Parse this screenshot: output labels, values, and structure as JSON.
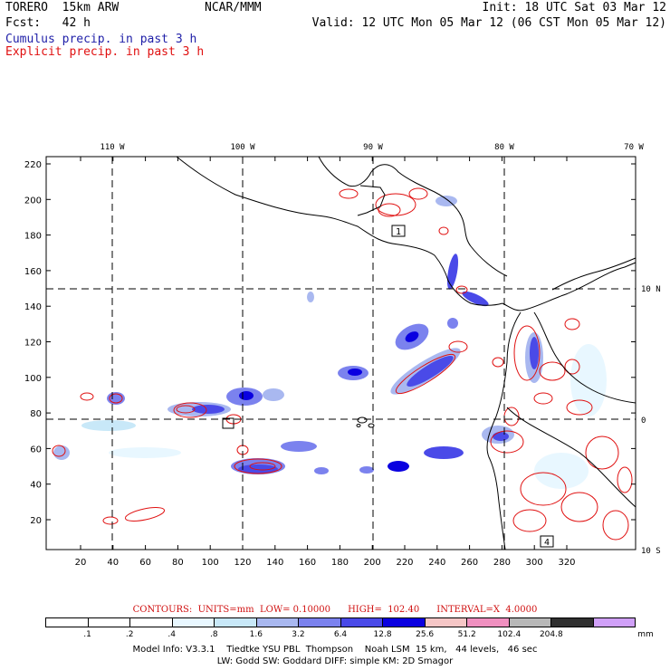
{
  "header": {
    "model": "TORERO  15km ARW",
    "org": "NCAR/MMM",
    "init": "Init: 18 UTC Sat 03 Mar 12",
    "fcst": "Fcst:   42 h",
    "valid": "Valid: 12 UTC Mon 05 Mar 12 (06 CST Mon 05 Mar 12)",
    "cumulus": "Cumulus precip. in past 3 h",
    "explicit": "Explicit precip. in past 3 h"
  },
  "axes": {
    "lon_labels": [
      "110 W",
      "100 W",
      "90 W",
      "80 W",
      "70 W"
    ],
    "lat_labels": [
      "10 N",
      "0",
      "10 S"
    ],
    "y_ticks": [
      "220",
      "200",
      "180",
      "160",
      "140",
      "120",
      "100",
      "80",
      "60",
      "40",
      "20"
    ],
    "x_ticks": [
      "20",
      "40",
      "60",
      "80",
      "100",
      "120",
      "140",
      "160",
      "180",
      "200",
      "220",
      "240",
      "260",
      "280",
      "300",
      "320"
    ]
  },
  "markers": [
    "1",
    "4"
  ],
  "contours_line": "CONTOURS:  UNITS=mm  LOW= 0.10000      HIGH=  102.40      INTERVAL=X  4.0000",
  "legend": {
    "values": [
      ".1",
      ".2",
      ".4",
      ".8",
      "1.6",
      "3.2",
      "6.4",
      "12.8",
      "25.6",
      "51.2",
      "102.4",
      "204.8"
    ],
    "unit": "mm",
    "colors": [
      "#ffffff",
      "#ffffff",
      "#ffffff",
      "#e8f7ff",
      "#c8e8f8",
      "#a9b8f0",
      "#7b82ee",
      "#4a4ae8",
      "#0a00e0",
      "#f5c6c6",
      "#f090c0",
      "#b8b8b8",
      "#303030",
      "#d0a0f8"
    ]
  },
  "model_info": {
    "line1": "Model Info: V3.3.1    Tiedtke YSU PBL  Thompson    Noah LSM  15 km,   44 levels,   46 sec",
    "line2": "LW: Godd SW: Goddard DIFF: simple KM: 2D Smagor"
  },
  "colors": {
    "cumulus": "#1f1fa8",
    "explicit": "#e01010",
    "accent_red": "#d01010"
  }
}
